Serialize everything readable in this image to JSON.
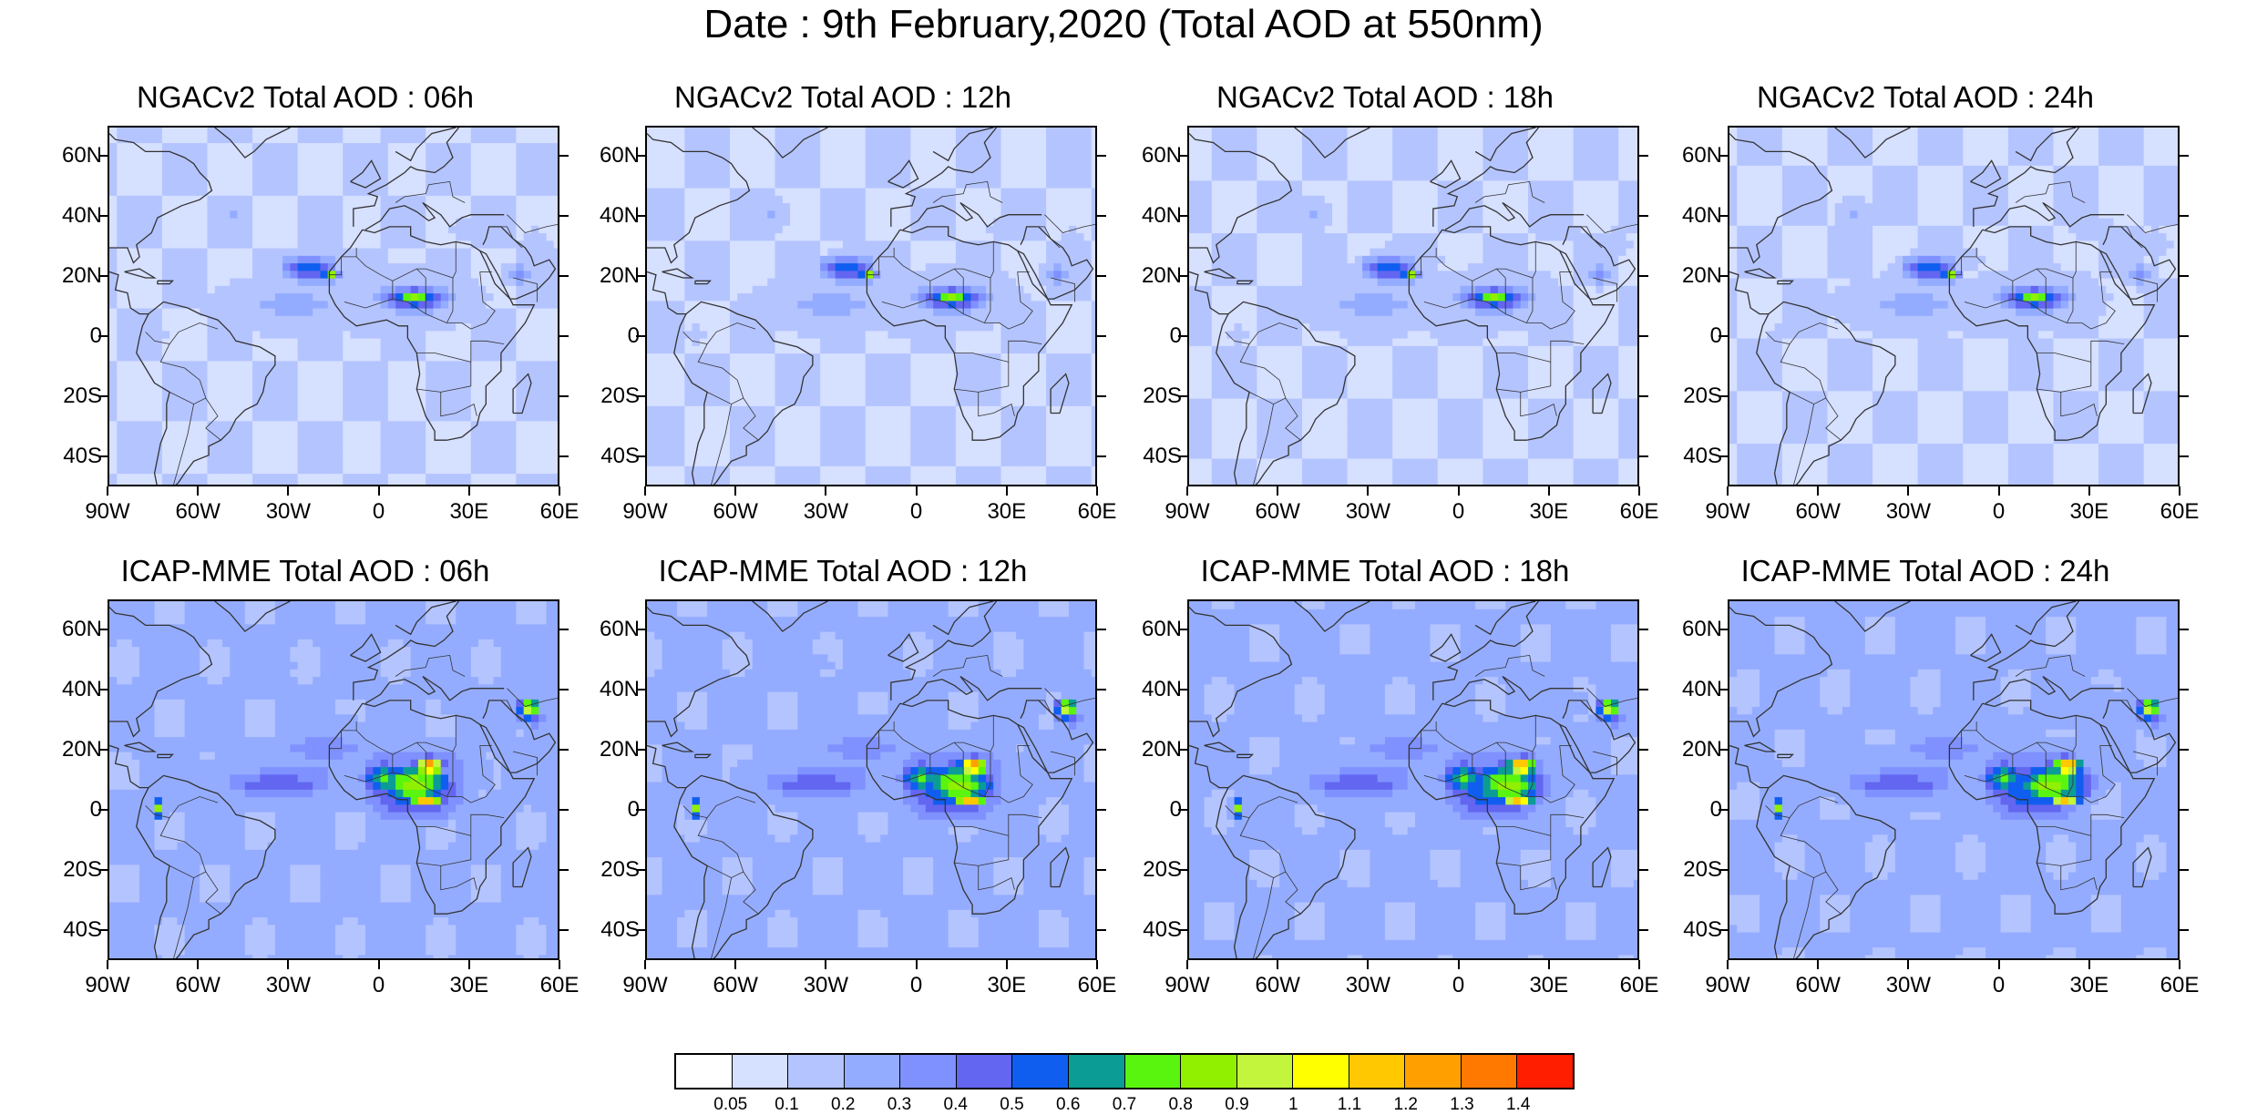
{
  "title": "Date : 9th February,2020 (Total AOD at 550nm)",
  "panels": [
    {
      "title": "NGACv2 Total AOD : 06h",
      "model": "NGACv2",
      "hour": "06h",
      "intensity": "low"
    },
    {
      "title": "NGACv2 Total AOD : 12h",
      "model": "NGACv2",
      "hour": "12h",
      "intensity": "low"
    },
    {
      "title": "NGACv2 Total AOD : 18h",
      "model": "NGACv2",
      "hour": "18h",
      "intensity": "low"
    },
    {
      "title": "NGACv2 Total AOD : 24h",
      "model": "NGACv2",
      "hour": "24h",
      "intensity": "low"
    },
    {
      "title": "ICAP-MME Total AOD : 06h",
      "model": "ICAP-MME",
      "hour": "06h",
      "intensity": "high"
    },
    {
      "title": "ICAP-MME Total AOD : 12h",
      "model": "ICAP-MME",
      "hour": "12h",
      "intensity": "high"
    },
    {
      "title": "ICAP-MME Total AOD : 18h",
      "model": "ICAP-MME",
      "hour": "18h",
      "intensity": "high"
    },
    {
      "title": "ICAP-MME Total AOD : 24h",
      "model": "ICAP-MME",
      "hour": "24h",
      "intensity": "high"
    }
  ],
  "axes": {
    "lat_labels": [
      "60N",
      "40N",
      "20N",
      "0",
      "20S",
      "40S"
    ],
    "lon_labels": [
      "90W",
      "60W",
      "30W",
      "0",
      "30E",
      "60E"
    ],
    "lat_range": [
      -50,
      70
    ],
    "lon_range": [
      -90,
      60
    ]
  },
  "colorbar": {
    "labels": [
      "0.05",
      "0.1",
      "0.2",
      "0.3",
      "0.4",
      "0.5",
      "0.6",
      "0.7",
      "0.8",
      "0.9",
      "1",
      "1.1",
      "1.2",
      "1.3",
      "1.4"
    ],
    "colors": [
      "#ffffff",
      "#d6e0ff",
      "#b4c4ff",
      "#94acff",
      "#7f91ff",
      "#6266f0",
      "#0f5ef0",
      "#0c9c96",
      "#5af50f",
      "#90f000",
      "#c3f53c",
      "#ffff00",
      "#ffc800",
      "#ffa000",
      "#ff7800",
      "#ff1e00"
    ]
  }
}
